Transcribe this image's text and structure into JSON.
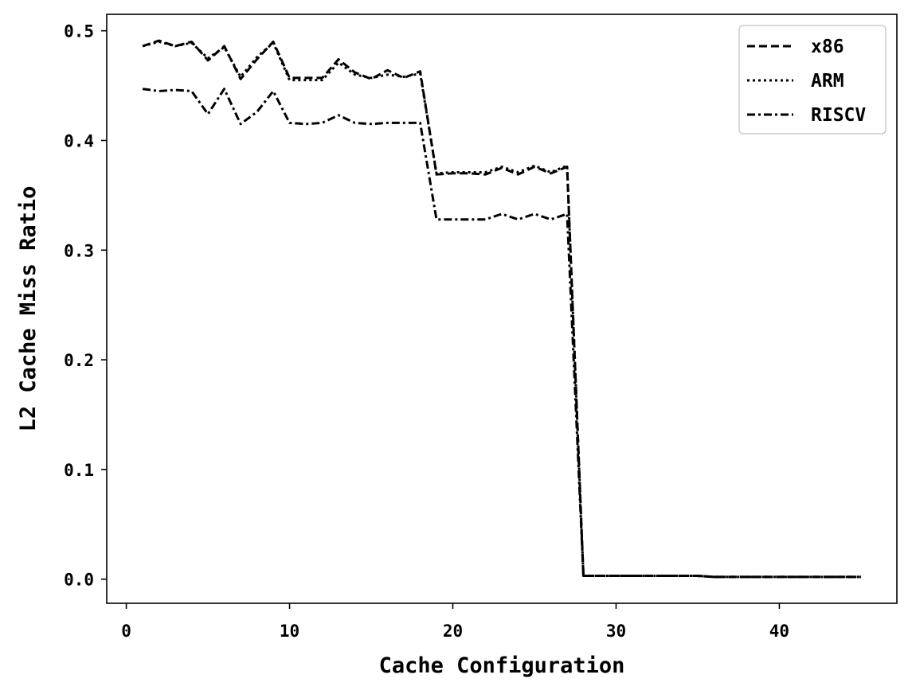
{
  "chart_data": {
    "type": "line",
    "title": "",
    "xlabel": "Cache Configuration",
    "ylabel": "L2 Cache Miss Ratio",
    "xlim": [
      -1.2,
      47.2
    ],
    "ylim": [
      -0.022,
      0.515
    ],
    "xticks": [
      0,
      10,
      20,
      30,
      40
    ],
    "yticks": [
      0.0,
      0.1,
      0.2,
      0.3,
      0.4,
      0.5
    ],
    "xtick_labels": [
      "0",
      "10",
      "20",
      "30",
      "40"
    ],
    "ytick_labels": [
      "0.0",
      "0.1",
      "0.2",
      "0.3",
      "0.4",
      "0.5"
    ],
    "grid": false,
    "legend_position": "top-right",
    "x": [
      1,
      2,
      3,
      4,
      5,
      6,
      7,
      8,
      9,
      10,
      11,
      12,
      13,
      14,
      15,
      16,
      17,
      18,
      19,
      20,
      21,
      22,
      23,
      24,
      25,
      26,
      27,
      28,
      29,
      30,
      31,
      32,
      33,
      34,
      35,
      36,
      37,
      38,
      39,
      40,
      41,
      42,
      43,
      44,
      45
    ],
    "series": [
      {
        "name": "x86",
        "style": "dashed",
        "color": "#000000",
        "values": [
          0.486,
          0.491,
          0.486,
          0.49,
          0.473,
          0.486,
          0.456,
          0.474,
          0.49,
          0.457,
          0.457,
          0.457,
          0.474,
          0.462,
          0.456,
          0.464,
          0.457,
          0.463,
          0.369,
          0.37,
          0.37,
          0.369,
          0.375,
          0.369,
          0.376,
          0.37,
          0.376,
          0.003,
          0.003,
          0.003,
          0.003,
          0.003,
          0.003,
          0.003,
          0.003,
          0.002,
          0.002,
          0.002,
          0.002,
          0.002,
          0.002,
          0.002,
          0.002,
          0.002,
          0.002
        ]
      },
      {
        "name": "ARM",
        "style": "dotted",
        "color": "#000000",
        "values": [
          0.486,
          0.49,
          0.486,
          0.489,
          0.475,
          0.485,
          0.458,
          0.476,
          0.489,
          0.455,
          0.455,
          0.455,
          0.471,
          0.46,
          0.457,
          0.46,
          0.458,
          0.461,
          0.37,
          0.371,
          0.371,
          0.371,
          0.376,
          0.371,
          0.377,
          0.371,
          0.377,
          0.003,
          0.003,
          0.003,
          0.003,
          0.003,
          0.003,
          0.003,
          0.003,
          0.002,
          0.002,
          0.002,
          0.002,
          0.002,
          0.002,
          0.002,
          0.002,
          0.002,
          0.002
        ]
      },
      {
        "name": "RISCV",
        "style": "dashdot",
        "color": "#000000",
        "values": [
          0.447,
          0.445,
          0.446,
          0.445,
          0.424,
          0.447,
          0.415,
          0.426,
          0.445,
          0.416,
          0.415,
          0.416,
          0.423,
          0.416,
          0.415,
          0.416,
          0.416,
          0.416,
          0.328,
          0.328,
          0.328,
          0.328,
          0.333,
          0.328,
          0.333,
          0.328,
          0.333,
          0.003,
          0.003,
          0.003,
          0.003,
          0.003,
          0.003,
          0.003,
          0.003,
          0.002,
          0.002,
          0.002,
          0.002,
          0.002,
          0.002,
          0.002,
          0.002,
          0.002,
          0.002
        ]
      }
    ]
  }
}
